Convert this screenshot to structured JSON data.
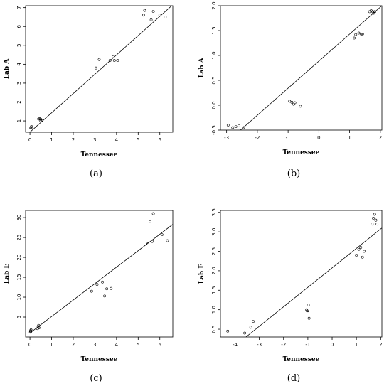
{
  "chart_data": [
    {
      "id": "a",
      "type": "scatter",
      "caption": "(a)",
      "xlabel": "Tennessee",
      "ylabel": "Lab A",
      "xlim": [
        -0.2,
        6.6
      ],
      "ylim": [
        0.4,
        7.1
      ],
      "xticks": [
        0,
        1,
        2,
        3,
        4,
        5,
        6
      ],
      "yticks": [
        1,
        2,
        3,
        4,
        5,
        6,
        7
      ],
      "xtick_labels": [
        "0",
        "1",
        "2",
        "3",
        "4",
        "5",
        "6"
      ],
      "ytick_labels": [
        "1",
        "2",
        "3",
        "4",
        "5",
        "6",
        "7"
      ],
      "fit_line": {
        "x": [
          -0.2,
          6.6
        ],
        "y": [
          0.2,
          7.15
        ]
      },
      "points": [
        [
          0.05,
          0.65
        ],
        [
          0.07,
          0.7
        ],
        [
          0.04,
          0.62
        ],
        [
          0.4,
          1.1
        ],
        [
          0.45,
          1.12
        ],
        [
          0.5,
          1.08
        ],
        [
          0.55,
          1.02
        ],
        [
          0.5,
          1.0
        ],
        [
          3.05,
          3.8
        ],
        [
          3.2,
          4.25
        ],
        [
          3.7,
          4.2
        ],
        [
          3.85,
          4.4
        ],
        [
          3.9,
          4.2
        ],
        [
          4.05,
          4.2
        ],
        [
          5.25,
          6.6
        ],
        [
          5.3,
          6.85
        ],
        [
          5.6,
          6.35
        ],
        [
          5.7,
          6.8
        ],
        [
          6.0,
          6.6
        ],
        [
          6.25,
          6.5
        ]
      ]
    },
    {
      "id": "b",
      "type": "scatter",
      "caption": "(b)",
      "xlabel": "Tennessee",
      "ylabel": "Lab A",
      "xlim": [
        -3.2,
        2.05
      ],
      "ylim": [
        -0.5,
        2.0
      ],
      "xticks": [
        -3,
        -2,
        -1,
        0,
        1,
        2
      ],
      "yticks": [
        -0.5,
        0.0,
        0.5,
        1.0,
        1.5,
        2.0
      ],
      "xtick_labels": [
        "-3",
        "-2",
        "-1",
        "0",
        "1",
        "2"
      ],
      "ytick_labels": [
        "-0.5",
        "0.0",
        "0.5",
        "1.0",
        "1.5",
        "2.0"
      ],
      "fit_line": {
        "x": [
          -2.55,
          2.05
        ],
        "y": [
          -0.5,
          2.0
        ]
      },
      "points": [
        [
          -2.95,
          -0.4
        ],
        [
          -2.8,
          -0.45
        ],
        [
          -2.7,
          -0.43
        ],
        [
          -2.6,
          -0.41
        ],
        [
          -2.45,
          -0.45
        ],
        [
          -0.95,
          0.08
        ],
        [
          -0.88,
          0.06
        ],
        [
          -0.82,
          0.02
        ],
        [
          -0.78,
          0.05
        ],
        [
          -0.6,
          -0.02
        ],
        [
          1.15,
          1.35
        ],
        [
          1.2,
          1.42
        ],
        [
          1.3,
          1.45
        ],
        [
          1.38,
          1.43
        ],
        [
          1.42,
          1.43
        ],
        [
          1.65,
          1.88
        ],
        [
          1.7,
          1.9
        ],
        [
          1.75,
          1.88
        ],
        [
          1.78,
          1.85
        ],
        [
          1.82,
          1.88
        ]
      ]
    },
    {
      "id": "c",
      "type": "scatter",
      "caption": "(c)",
      "xlabel": "Tennessee",
      "ylabel": "Lab E",
      "xlim": [
        -0.2,
        6.6
      ],
      "ylim": [
        0,
        31.8
      ],
      "xticks": [
        0,
        1,
        2,
        3,
        4,
        5,
        6
      ],
      "yticks": [
        5,
        10,
        15,
        20,
        25,
        30
      ],
      "xtick_labels": [
        "0",
        "1",
        "2",
        "3",
        "4",
        "5",
        "6"
      ],
      "ytick_labels": [
        "5",
        "10",
        "15",
        "20",
        "25",
        "30"
      ],
      "fit_line": {
        "x": [
          0.0,
          6.6
        ],
        "y": [
          1.0,
          28.3
        ]
      },
      "points": [
        [
          0.02,
          1.2
        ],
        [
          0.03,
          1.6
        ],
        [
          0.05,
          1.8
        ],
        [
          0.04,
          1.4
        ],
        [
          0.35,
          2.1
        ],
        [
          0.38,
          2.6
        ],
        [
          0.4,
          2.9
        ],
        [
          0.42,
          2.3
        ],
        [
          2.85,
          11.5
        ],
        [
          3.1,
          13.2
        ],
        [
          3.35,
          13.8
        ],
        [
          3.45,
          10.3
        ],
        [
          3.55,
          12.1
        ],
        [
          3.75,
          12.2
        ],
        [
          5.45,
          23.4
        ],
        [
          5.55,
          29.0
        ],
        [
          5.65,
          24.0
        ],
        [
          5.7,
          31.0
        ],
        [
          6.1,
          25.7
        ],
        [
          6.35,
          24.2
        ]
      ]
    },
    {
      "id": "d",
      "type": "scatter",
      "caption": "(d)",
      "xlabel": "Tennessee",
      "ylabel": "Lab E",
      "xlim": [
        -4.6,
        2.05
      ],
      "ylim": [
        0.3,
        3.55
      ],
      "xticks": [
        -4,
        -3,
        -2,
        -1,
        0,
        1,
        2
      ],
      "yticks": [
        0.5,
        1.0,
        1.5,
        2.0,
        2.5,
        3.0,
        3.5
      ],
      "xtick_labels": [
        "-4",
        "-3",
        "-2",
        "-1",
        "0",
        "1",
        "2"
      ],
      "ytick_labels": [
        "0.5",
        "1.0",
        "1.5",
        "2.0",
        "2.5",
        "3.0",
        "3.5"
      ],
      "fit_line": {
        "x": [
          -3.55,
          2.05
        ],
        "y": [
          0.3,
          3.1
        ]
      },
      "points": [
        [
          -4.3,
          0.45
        ],
        [
          -3.6,
          0.4
        ],
        [
          -3.35,
          0.55
        ],
        [
          -3.25,
          0.7
        ],
        [
          -1.05,
          1.0
        ],
        [
          -1.03,
          0.97
        ],
        [
          -1.0,
          0.92
        ],
        [
          -0.98,
          1.12
        ],
        [
          -0.95,
          0.78
        ],
        [
          1.0,
          2.4
        ],
        [
          1.1,
          2.55
        ],
        [
          1.18,
          2.6
        ],
        [
          1.25,
          2.35
        ],
        [
          1.32,
          2.5
        ],
        [
          1.65,
          3.2
        ],
        [
          1.7,
          3.35
        ],
        [
          1.75,
          3.45
        ],
        [
          1.8,
          3.3
        ],
        [
          1.85,
          3.2
        ]
      ]
    }
  ]
}
